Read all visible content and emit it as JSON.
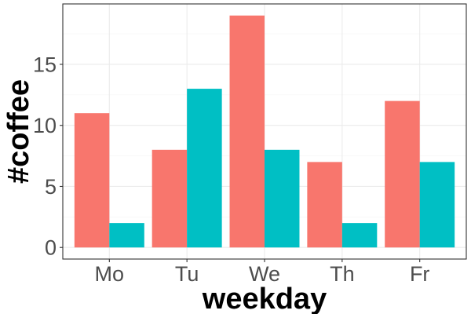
{
  "chart_data": {
    "type": "bar",
    "categories": [
      "Mo",
      "Tu",
      "We",
      "Th",
      "Fr"
    ],
    "series": [
      {
        "color": "#F8766D",
        "values": [
          11,
          8,
          19,
          7,
          12
        ]
      },
      {
        "color": "#00BFC4",
        "values": [
          2,
          13,
          8,
          2,
          7
        ]
      }
    ],
    "title": "",
    "xlabel": "weekday",
    "ylabel": "#coffee",
    "ylim": [
      -0.95,
      19.95
    ],
    "yticks": [
      0,
      5,
      10,
      15
    ],
    "y_tick_labels": [
      "0",
      "5",
      "10",
      "15"
    ],
    "grid": true,
    "legend": "none"
  }
}
